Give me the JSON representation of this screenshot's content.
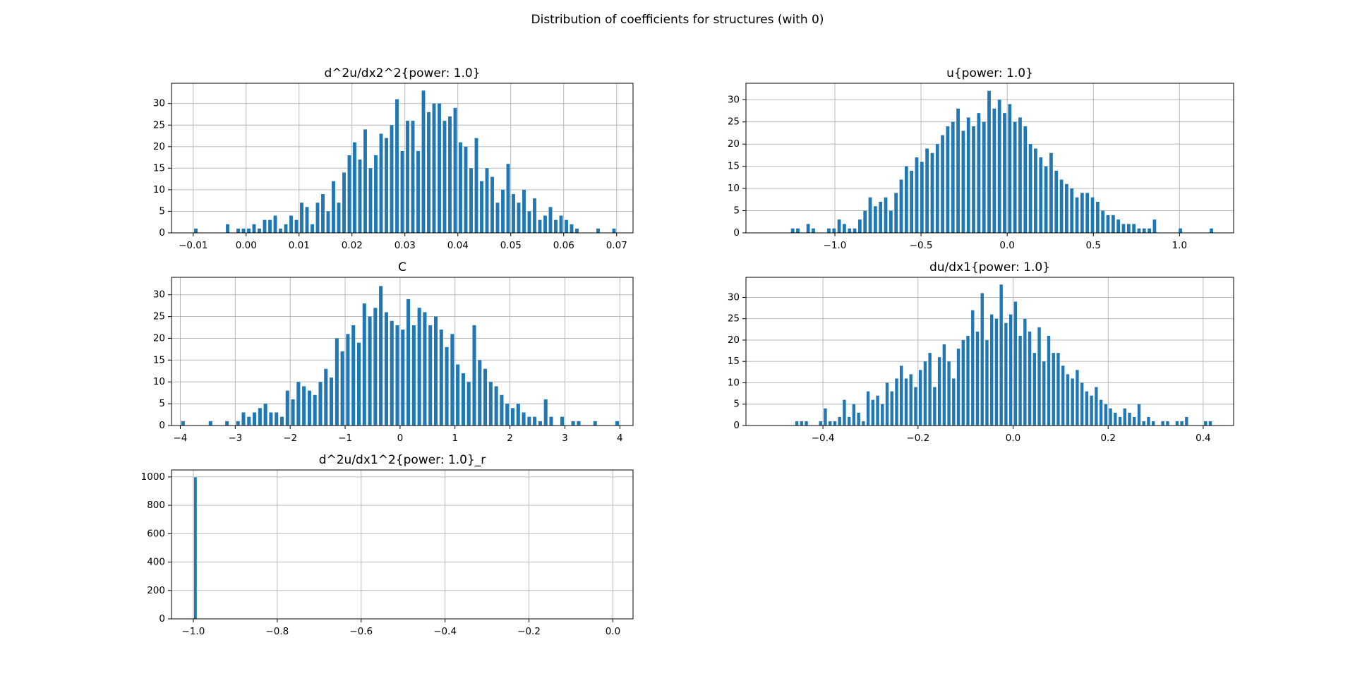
{
  "title": "Distribution of coefficients for structures (with 0)",
  "chart_data": [
    {
      "type": "histogram",
      "title": "d^2u/dx2^2{power: 1.0}",
      "color": "#1f77b4",
      "grid": true,
      "bins": [
        -0.01,
        -0.009,
        -0.008,
        -0.007,
        -0.006,
        -0.005,
        -0.004,
        -0.003,
        -0.002,
        -0.001,
        0,
        0.001,
        0.002,
        0.003,
        0.004,
        0.005,
        0.006,
        0.007,
        0.008,
        0.009,
        0.01,
        0.011,
        0.012,
        0.013,
        0.014,
        0.015,
        0.016,
        0.017,
        0.018,
        0.019,
        0.02,
        0.021,
        0.022,
        0.023,
        0.024,
        0.025,
        0.026,
        0.027,
        0.028,
        0.029,
        0.03,
        0.031,
        0.032,
        0.033,
        0.034,
        0.035,
        0.036,
        0.037,
        0.038,
        0.039,
        0.04,
        0.041,
        0.042,
        0.043,
        0.044,
        0.045,
        0.046,
        0.047,
        0.048,
        0.049,
        0.05,
        0.051,
        0.052,
        0.053,
        0.054,
        0.055,
        0.056,
        0.057,
        0.058,
        0.059,
        0.06,
        0.061,
        0.062,
        0.063,
        0.064,
        0.065,
        0.066,
        0.067,
        0.068,
        0.069,
        0.07
      ],
      "values": [
        1,
        0,
        0,
        0,
        0,
        0,
        2,
        0,
        1,
        1,
        1,
        2,
        1,
        3,
        3,
        4,
        1,
        2,
        4,
        3,
        7,
        6,
        2,
        7,
        9,
        5,
        12,
        7,
        14,
        18,
        21,
        17,
        24,
        15,
        18,
        23,
        22,
        25,
        31,
        19,
        26,
        26,
        19,
        33,
        28,
        30,
        30,
        26,
        27,
        29,
        21,
        20,
        15,
        22,
        12,
        15,
        13,
        7,
        10,
        16,
        9,
        7,
        10,
        5,
        8,
        3,
        4,
        6,
        3,
        4,
        3,
        2,
        1,
        0,
        0,
        0,
        1,
        0,
        0,
        1
      ],
      "xlim": [
        -0.0141,
        0.0731
      ],
      "ylim": [
        0,
        34.7
      ],
      "xticks": [
        {
          "value": -0.01,
          "label": "−0.01"
        },
        {
          "value": 0,
          "label": "0.00"
        },
        {
          "value": 0.01,
          "label": "0.01"
        },
        {
          "value": 0.02,
          "label": "0.02"
        },
        {
          "value": 0.03,
          "label": "0.03"
        },
        {
          "value": 0.04,
          "label": "0.04"
        },
        {
          "value": 0.05,
          "label": "0.05"
        },
        {
          "value": 0.06,
          "label": "0.06"
        },
        {
          "value": 0.07,
          "label": "0.07"
        }
      ],
      "yticks": [
        0,
        5,
        10,
        15,
        20,
        25,
        30
      ]
    },
    {
      "type": "histogram",
      "title": "u{power: 1.0}",
      "color": "#1f77b4",
      "grid": true,
      "bins": [
        -1.26,
        -1.23,
        -1.2,
        -1.17,
        -1.14,
        -1.11,
        -1.08,
        -1.05,
        -1.02,
        -0.99,
        -0.96,
        -0.93,
        -0.9,
        -0.87,
        -0.84,
        -0.81,
        -0.78,
        -0.75,
        -0.72,
        -0.69,
        -0.66,
        -0.63,
        -0.6,
        -0.57,
        -0.54,
        -0.51,
        -0.48,
        -0.45,
        -0.42,
        -0.39,
        -0.36,
        -0.33,
        -0.3,
        -0.27,
        -0.24,
        -0.21,
        -0.18,
        -0.15,
        -0.12,
        -0.09,
        -0.06,
        -0.03,
        0,
        0.03,
        0.06,
        0.09,
        0.12,
        0.15,
        0.18,
        0.21,
        0.24,
        0.27,
        0.3,
        0.33,
        0.36,
        0.39,
        0.42,
        0.45,
        0.48,
        0.51,
        0.54,
        0.57,
        0.6,
        0.63,
        0.66,
        0.69,
        0.72,
        0.75,
        0.78,
        0.81,
        0.84,
        0.87,
        0.9,
        0.93,
        0.96,
        0.99,
        1.02,
        1.05,
        1.08,
        1.11,
        1.14,
        1.17,
        1.2
      ],
      "values": [
        1,
        1,
        0,
        2,
        1,
        0,
        0,
        1,
        1,
        3,
        2,
        1,
        1,
        3,
        5,
        8,
        6,
        7,
        8,
        5,
        9,
        12,
        15,
        14,
        17,
        16,
        19,
        18,
        20,
        22,
        24,
        25,
        28,
        23,
        26,
        24,
        27,
        25,
        32,
        28,
        30,
        27,
        29,
        25,
        26,
        24,
        20,
        19,
        17,
        15,
        18,
        14,
        12,
        11,
        10,
        8,
        9,
        9,
        8,
        7,
        5,
        4,
        4,
        3,
        2,
        2,
        2,
        1,
        1,
        1,
        3,
        0,
        0,
        0,
        0,
        1,
        0,
        0,
        0,
        0,
        0,
        1
      ],
      "xlim": [
        -1.516,
        1.314
      ],
      "ylim": [
        0,
        33.7
      ],
      "xticks": [
        {
          "value": -1,
          "label": "−1.0"
        },
        {
          "value": -0.5,
          "label": "−0.5"
        },
        {
          "value": 0,
          "label": "0.0"
        },
        {
          "value": 0.5,
          "label": "0.5"
        },
        {
          "value": 1,
          "label": "1.0"
        }
      ],
      "yticks": [
        0,
        5,
        10,
        15,
        20,
        25,
        30
      ]
    },
    {
      "type": "histogram",
      "title": "C",
      "color": "#1f77b4",
      "grid": true,
      "bins": [
        -4,
        -3.9,
        -3.8,
        -3.7,
        -3.6,
        -3.5,
        -3.4,
        -3.3,
        -3.2,
        -3.1,
        -3,
        -2.9,
        -2.8,
        -2.7,
        -2.6,
        -2.5,
        -2.4,
        -2.3,
        -2.2,
        -2.1,
        -2,
        -1.9,
        -1.8,
        -1.7,
        -1.6,
        -1.5,
        -1.4,
        -1.3,
        -1.2,
        -1.1,
        -1,
        -0.9,
        -0.8,
        -0.7,
        -0.6,
        -0.5,
        -0.4,
        -0.3,
        -0.2,
        -0.1,
        0,
        0.1,
        0.2,
        0.3,
        0.4,
        0.5,
        0.6,
        0.7,
        0.8,
        0.9,
        1,
        1.1,
        1.2,
        1.3,
        1.4,
        1.5,
        1.6,
        1.7,
        1.8,
        1.9,
        2,
        2.1,
        2.2,
        2.3,
        2.4,
        2.5,
        2.6,
        2.7,
        2.8,
        2.9,
        3,
        3.1,
        3.2,
        3.3,
        3.4,
        3.5,
        3.6,
        3.7,
        3.8,
        3.9,
        4
      ],
      "values": [
        1,
        0,
        0,
        0,
        0,
        1,
        0,
        0,
        1,
        0,
        1,
        3,
        2,
        3,
        4,
        5,
        3,
        3,
        2,
        8,
        6,
        10,
        9,
        8,
        7,
        10,
        13,
        11,
        20,
        17,
        21,
        23,
        19,
        28,
        25,
        27,
        32,
        26,
        24,
        23,
        22,
        29,
        23,
        27,
        26,
        23,
        25,
        22,
        18,
        21,
        14,
        12,
        10,
        23,
        15,
        13,
        10,
        9,
        7,
        5,
        4,
        5,
        3,
        2,
        2,
        1,
        6,
        2,
        0,
        2,
        0,
        1,
        1,
        0,
        0,
        1,
        0,
        0,
        0,
        1
      ],
      "xlim": [
        -4.16,
        4.24
      ],
      "ylim": [
        0,
        34
      ],
      "xticks": [
        {
          "value": -4,
          "label": "−4"
        },
        {
          "value": -3,
          "label": "−3"
        },
        {
          "value": -2,
          "label": "−2"
        },
        {
          "value": -1,
          "label": "−1"
        },
        0,
        1,
        2,
        3,
        4
      ],
      "yticks": [
        0,
        5,
        10,
        15,
        20,
        25,
        30
      ]
    },
    {
      "type": "histogram",
      "title": "du/dx1{power: 1.0}",
      "color": "#1f77b4",
      "grid": true,
      "bins": [
        -0.46,
        -0.45,
        -0.44,
        -0.43,
        -0.42,
        -0.41,
        -0.4,
        -0.39,
        -0.38,
        -0.37,
        -0.36,
        -0.35,
        -0.34,
        -0.33,
        -0.32,
        -0.31,
        -0.3,
        -0.29,
        -0.28,
        -0.27,
        -0.26,
        -0.25,
        -0.24,
        -0.23,
        -0.22,
        -0.21,
        -0.2,
        -0.19,
        -0.18,
        -0.17,
        -0.16,
        -0.15,
        -0.14,
        -0.13,
        -0.12,
        -0.11,
        -0.1,
        -0.09,
        -0.08,
        -0.07,
        -0.06,
        -0.05,
        -0.04,
        -0.03,
        -0.02,
        -0.01,
        0,
        0.01,
        0.02,
        0.03,
        0.04,
        0.05,
        0.06,
        0.07,
        0.08,
        0.09,
        0.1,
        0.11,
        0.12,
        0.13,
        0.14,
        0.15,
        0.16,
        0.17,
        0.18,
        0.19,
        0.2,
        0.21,
        0.22,
        0.23,
        0.24,
        0.25,
        0.26,
        0.27,
        0.28,
        0.29,
        0.3,
        0.31,
        0.32,
        0.33,
        0.34,
        0.35,
        0.36,
        0.37,
        0.38,
        0.39,
        0.4,
        0.41,
        0.42
      ],
      "values": [
        1,
        1,
        1,
        0,
        0,
        1,
        4,
        1,
        1,
        2,
        6,
        2,
        5,
        3,
        1,
        8,
        6,
        7,
        5,
        10,
        8,
        11,
        14,
        11,
        12,
        9,
        13,
        15,
        17,
        9,
        16,
        19,
        15,
        11,
        18,
        20,
        21,
        27,
        22,
        31,
        20,
        26,
        25,
        33,
        24,
        26,
        29,
        21,
        25,
        22,
        17,
        23,
        15,
        21,
        17,
        17,
        14,
        12,
        11,
        13,
        10,
        8,
        7,
        9,
        6,
        5,
        4,
        3,
        2,
        4,
        3,
        2,
        5,
        1,
        2,
        1,
        0,
        1,
        1,
        0,
        1,
        1,
        2,
        0,
        0,
        0,
        1,
        1
      ],
      "xlim": [
        -0.562,
        0.464
      ],
      "ylim": [
        0,
        34.7
      ],
      "xticks": [
        {
          "value": -0.4,
          "label": "−0.4"
        },
        {
          "value": -0.2,
          "label": "−0.2"
        },
        {
          "value": 0,
          "label": "0.0"
        },
        {
          "value": 0.2,
          "label": "0.2"
        },
        {
          "value": 0.4,
          "label": "0.4"
        }
      ],
      "yticks": [
        0,
        5,
        10,
        15,
        20,
        25,
        30
      ]
    },
    {
      "type": "histogram",
      "title": "d^2u/dx1^2{power: 1.0}_r",
      "color": "#1f77b4",
      "grid": true,
      "bins": [
        -1,
        -0.99,
        -0.98,
        -0.97,
        -0.96,
        -0.95,
        -0.94,
        -0.93,
        -0.92,
        -0.91,
        -0.9,
        -0.89,
        -0.88,
        -0.87,
        -0.86,
        -0.85,
        -0.84,
        -0.83,
        -0.82,
        -0.81,
        -0.8,
        -0.79,
        -0.78,
        -0.77,
        -0.76,
        -0.75,
        -0.74,
        -0.73,
        -0.72,
        -0.71,
        -0.7,
        -0.69,
        -0.68,
        -0.67,
        -0.66,
        -0.65,
        -0.64,
        -0.63,
        -0.62,
        -0.61,
        -0.6,
        -0.59,
        -0.58,
        -0.57,
        -0.56,
        -0.55,
        -0.54,
        -0.53,
        -0.52,
        -0.51,
        -0.5,
        -0.49,
        -0.48,
        -0.47,
        -0.46,
        -0.45,
        -0.44,
        -0.43,
        -0.42,
        -0.41,
        -0.4,
        -0.39,
        -0.38,
        -0.37,
        -0.36,
        -0.35,
        -0.34,
        -0.33,
        -0.32,
        -0.31,
        -0.3,
        -0.29,
        -0.28,
        -0.27,
        -0.26,
        -0.25,
        -0.24,
        -0.23,
        -0.22,
        -0.21,
        -0.2,
        -0.19,
        -0.18,
        -0.17,
        -0.16,
        -0.15,
        -0.14,
        -0.13,
        -0.12,
        -0.11,
        -0.1,
        -0.09,
        -0.08,
        -0.07,
        -0.06,
        -0.05,
        -0.04,
        -0.03,
        -0.02,
        -0.01,
        0
      ],
      "values": [
        997,
        0,
        0,
        0,
        0,
        0,
        0,
        0,
        0,
        0,
        0,
        0,
        0,
        0,
        0,
        0,
        0,
        0,
        0,
        0,
        0,
        0,
        0,
        0,
        0,
        0,
        0,
        0,
        0,
        0,
        0,
        0,
        0,
        0,
        0,
        0,
        0,
        0,
        0,
        0,
        0,
        0,
        0,
        0,
        0,
        0,
        0,
        0,
        0,
        0,
        0,
        0,
        0,
        0,
        0,
        0,
        0,
        0,
        0,
        0,
        0,
        0,
        0,
        0,
        0,
        0,
        0,
        0,
        0,
        0,
        0,
        0,
        0,
        0,
        0,
        0,
        0,
        0,
        0,
        0,
        0,
        0,
        0,
        0,
        0,
        0,
        0,
        0,
        0,
        0,
        0,
        0,
        0,
        0,
        0,
        0,
        0,
        0,
        0,
        3
      ],
      "xlim": [
        -1.052,
        0.048
      ],
      "ylim": [
        0,
        1049
      ],
      "xticks": [
        {
          "value": -1,
          "label": "−1.0"
        },
        {
          "value": -0.8,
          "label": "−0.8"
        },
        {
          "value": -0.6,
          "label": "−0.6"
        },
        {
          "value": -0.4,
          "label": "−0.4"
        },
        {
          "value": -0.2,
          "label": "−0.2"
        },
        {
          "value": 0,
          "label": "0.0"
        }
      ],
      "yticks": [
        0,
        200,
        400,
        600,
        800,
        1000
      ]
    }
  ]
}
